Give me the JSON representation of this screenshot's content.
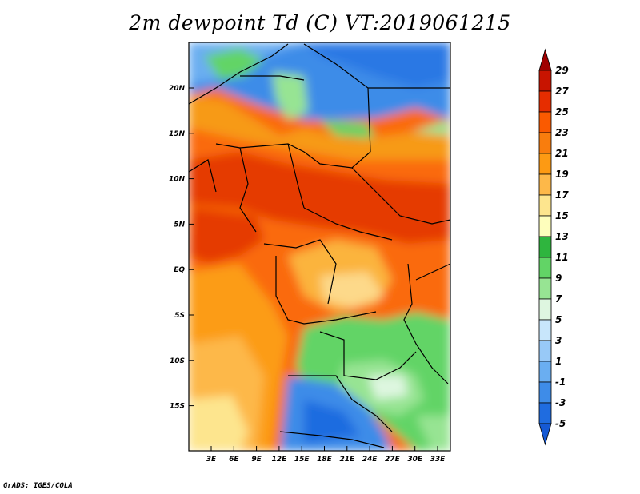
{
  "title": "2m dewpoint Td (C) VT:2019061215",
  "credit": "GrADS: IGES/COLA",
  "map": {
    "lat_labels": [
      "20N",
      "15N",
      "10N",
      "5N",
      "EQ",
      "5S",
      "10S",
      "15S"
    ],
    "lon_labels": [
      "3E",
      "6E",
      "9E",
      "12E",
      "15E",
      "18E",
      "21E",
      "24E",
      "27E",
      "30E",
      "33E"
    ]
  },
  "colorbar": {
    "levels": [
      "29",
      "27",
      "25",
      "23",
      "21",
      "19",
      "17",
      "15",
      "13",
      "11",
      "9",
      "7",
      "5",
      "3",
      "1",
      "-1",
      "-3",
      "-5"
    ],
    "colors": [
      "#a00000",
      "#c81400",
      "#e62d00",
      "#fa5a00",
      "#f97d0d",
      "#fd9a13",
      "#fdb849",
      "#fde58e",
      "#fefebc",
      "#2fb53e",
      "#62d466",
      "#97e493",
      "#def6e0",
      "#c8e6fb",
      "#98c9f7",
      "#6aaef1",
      "#3e8ce8",
      "#1f6ce0",
      "#1559d4"
    ]
  }
}
